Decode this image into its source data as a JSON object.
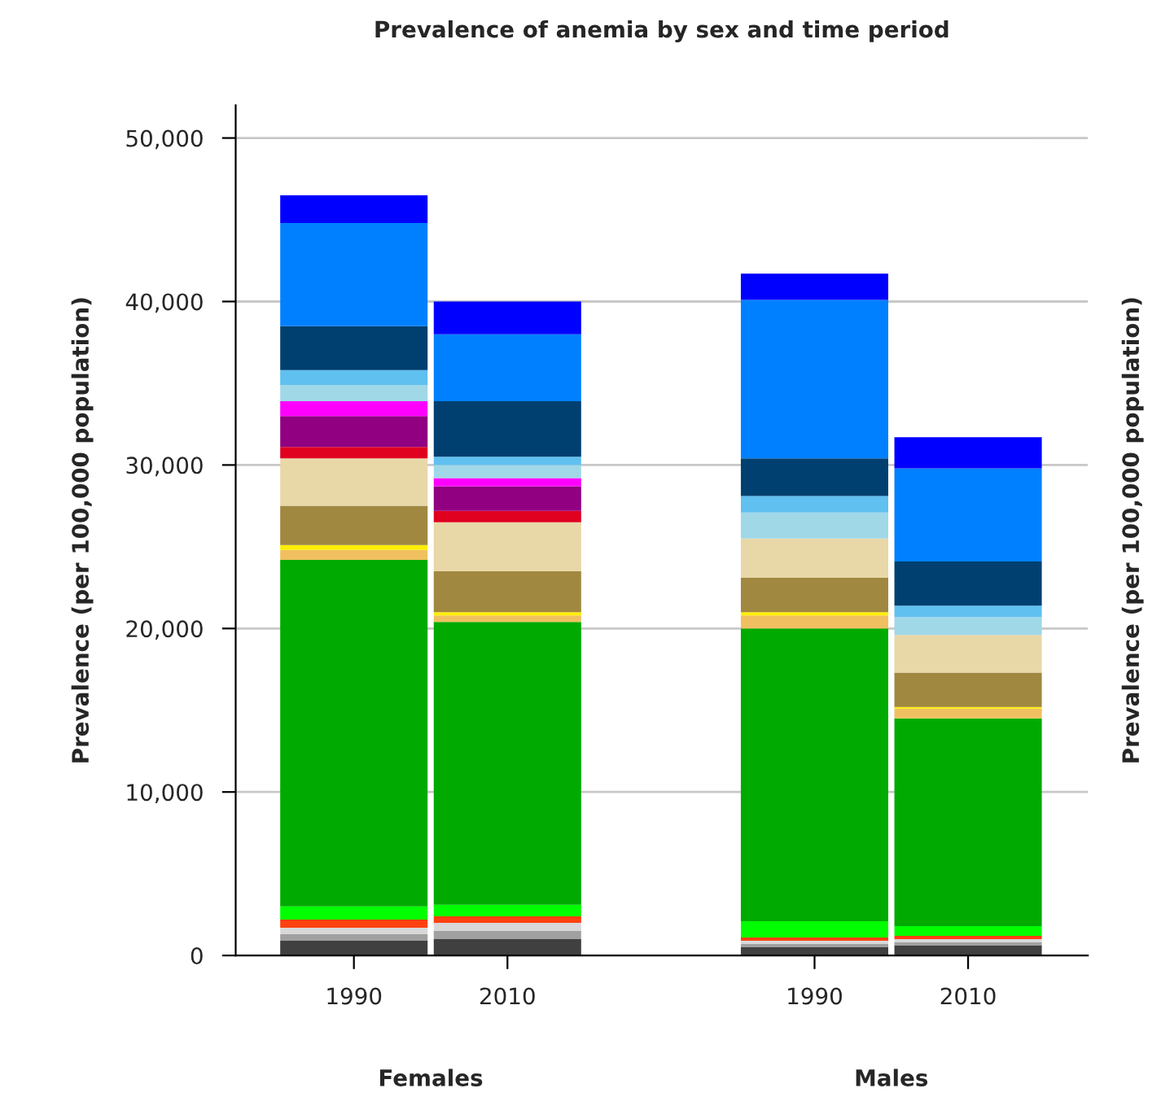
{
  "chart_data": {
    "type": "bar",
    "stacked": true,
    "title": "Prevalence of anemia by sex and time period",
    "ylabel": "Prevalence (per 100,000 population)",
    "y2label": "Prevalence (per 100,000 population)",
    "categories": [
      "1990",
      "2010",
      "1990",
      "2010"
    ],
    "annotations": [
      "Females",
      "Males"
    ],
    "ylim": [
      0,
      52000
    ],
    "yticks": [
      {
        "value": 0,
        "label": "0"
      },
      {
        "value": 10000,
        "label": "10,000"
      },
      {
        "value": 20000,
        "label": "20,000"
      },
      {
        "value": 30000,
        "label": "30,000"
      },
      {
        "value": 40000,
        "label": "40,000"
      },
      {
        "value": 50000,
        "label": "50,000"
      }
    ],
    "grid": "y",
    "legend": false,
    "series": [
      {
        "color": "#404040",
        "values": [
          900,
          1000,
          500,
          600
        ]
      },
      {
        "color": "#a0a0a0",
        "values": [
          400,
          500,
          200,
          200
        ]
      },
      {
        "color": "#d8d8d8",
        "values": [
          400,
          500,
          200,
          200
        ]
      },
      {
        "color": "#ff4010",
        "values": [
          500,
          400,
          200,
          200
        ]
      },
      {
        "color": "#00ff00",
        "values": [
          800,
          700,
          1000,
          600
        ]
      },
      {
        "color": "#00aa00",
        "values": [
          21200,
          17300,
          17900,
          12700
        ]
      },
      {
        "color": "#f0c060",
        "values": [
          600,
          400,
          800,
          600
        ]
      },
      {
        "color": "#ffee00",
        "values": [
          300,
          200,
          200,
          100
        ]
      },
      {
        "color": "#a08840",
        "values": [
          2400,
          2500,
          2100,
          2100
        ]
      },
      {
        "color": "#e8d8a8",
        "values": [
          2900,
          3000,
          2400,
          2300
        ]
      },
      {
        "color": "#e00020",
        "values": [
          700,
          700,
          0,
          0
        ]
      },
      {
        "color": "#900080",
        "values": [
          1900,
          1500,
          0,
          0
        ]
      },
      {
        "color": "#ff00ff",
        "values": [
          900,
          500,
          0,
          0
        ]
      },
      {
        "color": "#a0d8e8",
        "values": [
          1000,
          800,
          1600,
          1100
        ]
      },
      {
        "color": "#60c0f0",
        "values": [
          900,
          500,
          1000,
          700
        ]
      },
      {
        "color": "#004070",
        "values": [
          2700,
          3400,
          2300,
          2700
        ]
      },
      {
        "color": "#0080ff",
        "values": [
          6300,
          4100,
          9700,
          5700
        ]
      },
      {
        "color": "#0000ff",
        "values": [
          1700,
          2000,
          1600,
          1900
        ]
      }
    ]
  }
}
